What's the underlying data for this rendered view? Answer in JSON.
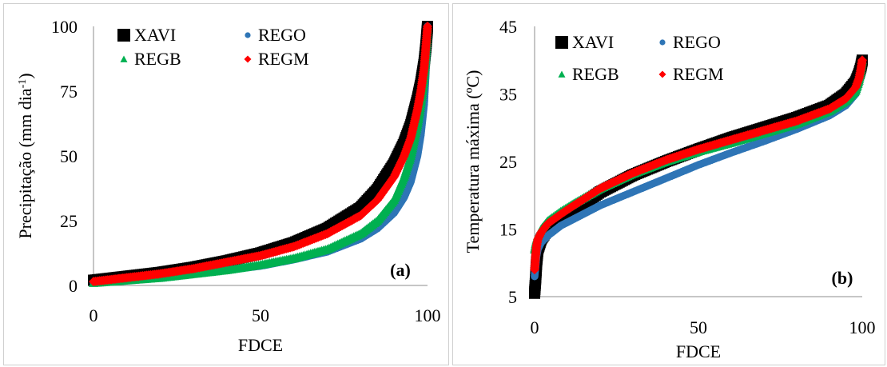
{
  "chart_data": [
    {
      "type": "scatter",
      "panel_label": "(a)",
      "xlabel": "FDCE",
      "ylabel": "Precipitação (mm dia-1)",
      "ylabel_main": "Precipitação (mm dia",
      "ylabel_sup": "-1",
      "ylabel_close": ")",
      "xlim": [
        0,
        100
      ],
      "ylim": [
        0,
        100
      ],
      "xticks": [
        0,
        50,
        100
      ],
      "yticks": [
        0,
        25,
        50,
        75,
        100
      ],
      "grid": false,
      "legend_position": "top-left",
      "series": [
        {
          "name": "XAVI",
          "color": "#000000",
          "marker": "square",
          "x": [
            0,
            10,
            20,
            30,
            40,
            50,
            60,
            70,
            80,
            85,
            90,
            93,
            95,
            97,
            98,
            99,
            99.5,
            100
          ],
          "y": [
            2,
            3.5,
            5,
            7,
            9.5,
            12.5,
            16.5,
            22,
            30,
            37,
            47,
            55,
            62,
            72,
            78,
            86,
            92,
            100
          ]
        },
        {
          "name": "REGO",
          "color": "#2e75b6",
          "marker": "circle",
          "x": [
            0,
            10,
            20,
            30,
            40,
            50,
            60,
            70,
            80,
            85,
            90,
            93,
            95,
            97,
            98,
            99,
            99.5,
            100
          ],
          "y": [
            1,
            2,
            3,
            4.5,
            6,
            7.5,
            10,
            13,
            18,
            22,
            28,
            34,
            40,
            50,
            58,
            70,
            82,
            100
          ]
        },
        {
          "name": "REGB",
          "color": "#00b050",
          "marker": "triangle",
          "x": [
            0,
            10,
            20,
            30,
            40,
            50,
            60,
            70,
            80,
            85,
            90,
            93,
            95,
            97,
            98,
            99,
            99.5,
            100
          ],
          "y": [
            1,
            2,
            3,
            4.5,
            6,
            8,
            10.5,
            14,
            20,
            25,
            33,
            42,
            50,
            62,
            70,
            80,
            88,
            100
          ]
        },
        {
          "name": "REGM",
          "color": "#ff0000",
          "marker": "diamond",
          "x": [
            0,
            10,
            20,
            30,
            40,
            50,
            60,
            70,
            80,
            85,
            90,
            93,
            95,
            97,
            98,
            99,
            99.5,
            100
          ],
          "y": [
            1.5,
            3,
            4.5,
            6.5,
            9,
            11.5,
            15,
            20,
            27,
            33,
            42,
            50,
            57,
            68,
            75,
            84,
            92,
            100
          ]
        }
      ]
    },
    {
      "type": "scatter",
      "panel_label": "(b)",
      "xlabel": "FDCE",
      "ylabel": "Temperatura máxima (ºC)",
      "xlim": [
        0,
        100
      ],
      "ylim": [
        5,
        45
      ],
      "xticks": [
        0,
        50,
        100
      ],
      "yticks": [
        5,
        15,
        25,
        35,
        45
      ],
      "grid": false,
      "legend_position": "top-left",
      "series": [
        {
          "name": "XAVI",
          "color": "#000000",
          "marker": "square",
          "x": [
            0,
            0.3,
            0.6,
            1,
            2,
            4,
            8,
            12,
            20,
            30,
            40,
            50,
            60,
            70,
            80,
            90,
            95,
            98,
            99,
            99.6,
            100
          ],
          "y": [
            5.5,
            7.5,
            10,
            12,
            13.5,
            15,
            16.5,
            17.8,
            20.5,
            23,
            25,
            26.8,
            28.5,
            30,
            31.5,
            33.3,
            35,
            36.8,
            38,
            39,
            40
          ]
        },
        {
          "name": "REGO",
          "color": "#2e75b6",
          "marker": "circle",
          "x": [
            0,
            0.3,
            0.6,
            1,
            2,
            4,
            8,
            12,
            20,
            30,
            40,
            50,
            60,
            70,
            80,
            90,
            95,
            98,
            99,
            99.6,
            100
          ],
          "y": [
            8,
            9.5,
            11,
            12,
            13,
            14,
            15.5,
            16.5,
            18.5,
            20.5,
            22.5,
            24.5,
            26.3,
            28,
            29.8,
            31.8,
            33.3,
            35,
            36.5,
            38,
            39.5
          ]
        },
        {
          "name": "REGB",
          "color": "#00b050",
          "marker": "triangle",
          "x": [
            0,
            0.3,
            0.6,
            1,
            2,
            4,
            8,
            12,
            20,
            30,
            40,
            50,
            60,
            70,
            80,
            90,
            95,
            98,
            99,
            99.6,
            100
          ],
          "y": [
            12,
            12.8,
            13.4,
            14,
            15,
            16.2,
            17.6,
            18.8,
            21,
            23.2,
            25,
            26.5,
            27.8,
            29.2,
            30.6,
            32.5,
            34,
            35.5,
            37,
            38.5,
            40
          ]
        },
        {
          "name": "REGM",
          "color": "#ff0000",
          "marker": "diamond",
          "x": [
            0,
            0.3,
            0.6,
            1,
            2,
            4,
            8,
            12,
            20,
            30,
            40,
            50,
            60,
            70,
            80,
            90,
            95,
            98,
            99,
            99.6,
            100
          ],
          "y": [
            9,
            11,
            12.5,
            13.5,
            14.5,
            15.8,
            17.2,
            18.5,
            21,
            23.3,
            25.2,
            26.8,
            28.2,
            29.6,
            31,
            32.8,
            34.3,
            36,
            37.3,
            38.7,
            40
          ]
        }
      ]
    }
  ]
}
